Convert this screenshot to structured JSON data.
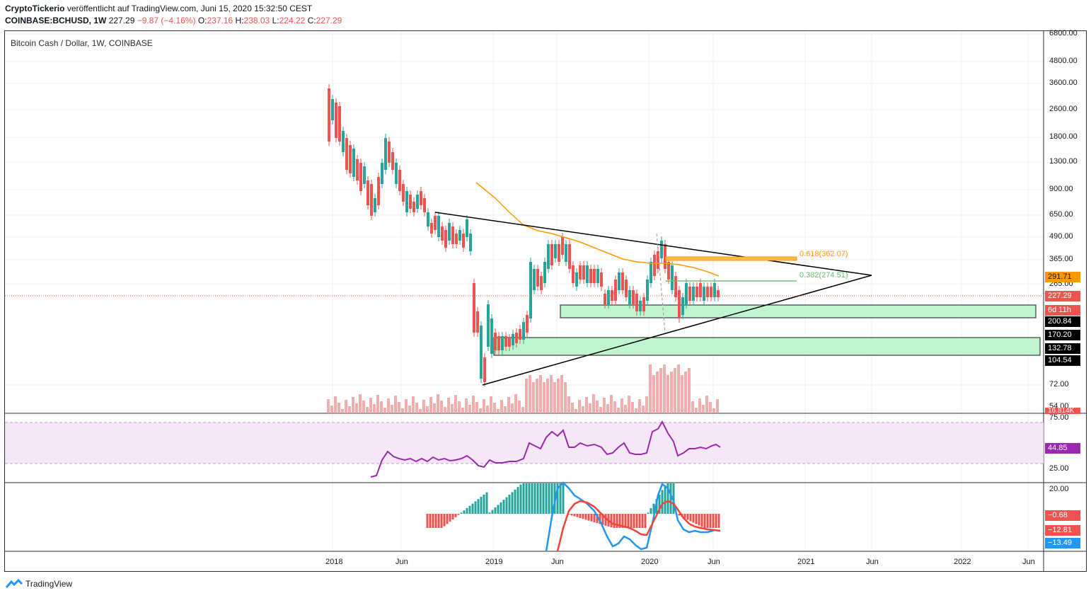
{
  "header": {
    "publisher": "CryptoTickerio",
    "published_text": "veröffentlicht auf TradingView.com, Juni 15, 2020 15:32:50 CEST",
    "symbol": "COINBASE:BCHUSD, 1W",
    "last": "227.29",
    "change": "−9.87 (−4.16%)",
    "open_label": "O:",
    "open": "237.16",
    "high_label": "H:",
    "high": "238.03",
    "low_label": "L:",
    "low": "224.22",
    "close_label": "C:",
    "close": "227.29"
  },
  "chart_title": "Bitcoin Cash / Dollar, 1W, COINBASE",
  "price_axis": [
    "6800.00",
    "4800.00",
    "3600.00",
    "2600.00",
    "1800.00",
    "1300.00",
    "900.00",
    "650.00",
    "490.00",
    "365.00",
    "265.00",
    "72.00",
    "54.00"
  ],
  "price_tags": {
    "ma": "291.71",
    "last": "227.29",
    "countdown": "6d 11h",
    "z1": "200.84",
    "z2": "170.20",
    "z3": "132.78",
    "z4": "104.54",
    "volume": "16.814K"
  },
  "rsi_axis": [
    "75.00",
    "50.00",
    "25.00"
  ],
  "rsi_value": "44.85",
  "macd_axis": [
    "20.00"
  ],
  "macd_values": [
    "−0.68",
    "−12.81",
    "−13.49"
  ],
  "fib_labels": [
    "0.618(362.07)",
    "0.382(274.51)"
  ],
  "time_axis": [
    "2018",
    "Jun",
    "2019",
    "Jun",
    "2020",
    "Jun",
    "2021",
    "Jun",
    "2022",
    "Jun"
  ],
  "colors": {
    "up": "#26a69a",
    "down": "#ef5350",
    "ma": "#ff9800",
    "rsi": "#9c27b0",
    "macd": "#2196f3",
    "signal": "#f44336",
    "zone": "#b9f6ca"
  },
  "footer_brand": "TradingView",
  "icons": [
    "tradingview-logo-icon"
  ]
}
